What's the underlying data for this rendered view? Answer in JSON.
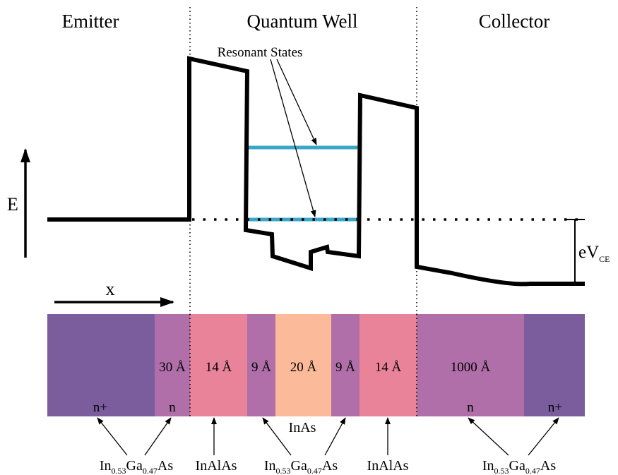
{
  "regions": {
    "emitter": "Emitter",
    "well": "Quantum Well",
    "collector": "Collector"
  },
  "axes": {
    "energy": "E",
    "position": "x"
  },
  "annotation": "Resonant States",
  "bias": {
    "main": "eV",
    "sub": "CE"
  },
  "layers": [
    {
      "thickness": "",
      "doping": "n+",
      "color": "#7b5d9e"
    },
    {
      "thickness": "30 Å",
      "doping": "n",
      "color": "#b06fa8"
    },
    {
      "thickness": "14 Å",
      "doping": "",
      "color": "#e8839a"
    },
    {
      "thickness": "9 Å",
      "doping": "",
      "color": "#b06fa8"
    },
    {
      "thickness": "20 Å",
      "doping": "",
      "color": "#fbbb9a"
    },
    {
      "thickness": "9 Å",
      "doping": "",
      "color": "#b06fa8"
    },
    {
      "thickness": "14 Å",
      "doping": "",
      "color": "#e8839a"
    },
    {
      "thickness": "1000 Å",
      "doping": "n",
      "color": "#b06fa8"
    },
    {
      "thickness": "",
      "doping": "n+",
      "color": "#7b5d9e"
    }
  ],
  "materials": {
    "well": "InAs",
    "barrier": "InAlAs",
    "ingaas": {
      "in": "In",
      "in_frac": "0.53",
      "ga": "Ga",
      "ga_frac": "0.47",
      "as": "As"
    }
  },
  "colors": {
    "resonant_state": "#3aa7c8",
    "band": "#000000"
  }
}
